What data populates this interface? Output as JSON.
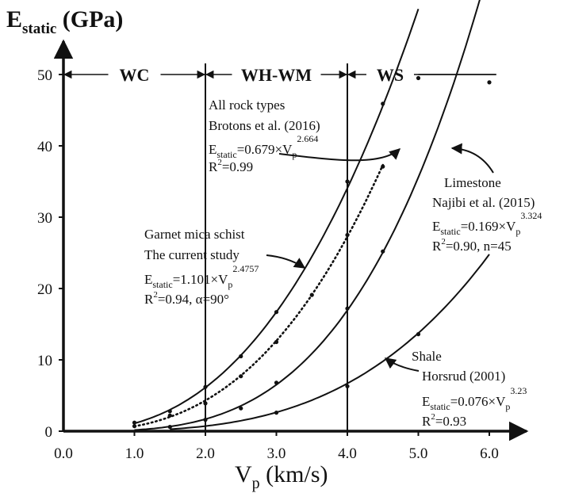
{
  "chart_data": {
    "type": "line",
    "y_axis_title": {
      "main": "E",
      "sub": "static",
      "rest": " (GPa)"
    },
    "x_axis_title": {
      "main": "V",
      "sub": "p",
      "rest": " (km/s)"
    },
    "xlim": [
      0,
      6.4
    ],
    "ylim": [
      0,
      52
    ],
    "x_ticks": [
      "0.0",
      "1.0",
      "2.0",
      "3.0",
      "4.0",
      "5.0",
      "6.0"
    ],
    "y_ticks": [
      "0",
      "10",
      "20",
      "30",
      "40",
      "50"
    ],
    "zones": [
      {
        "label": "WC",
        "x_range": [
          0,
          2
        ]
      },
      {
        "label": "WH-WM",
        "x_range": [
          2,
          4
        ]
      },
      {
        "label": "WS",
        "x_range": [
          4,
          6.1
        ]
      }
    ],
    "series": [
      {
        "key": "all",
        "style": "dotted",
        "coef": 0.679,
        "exp": 2.664,
        "x_range": [
          1.0,
          4.5
        ],
        "points": [
          [
            1.0,
            1.2
          ],
          [
            1.5,
            2.8
          ],
          [
            2.0,
            6.2
          ],
          [
            2.5,
            10.5
          ],
          [
            3.0,
            16.7
          ],
          [
            4.0,
            35.0
          ],
          [
            4.5,
            45.9
          ]
        ],
        "label_lines": [
          "All rock types",
          "Brotons et al. (2016)"
        ],
        "eq": {
          "lhs": "E",
          "sub": "static",
          "mid": "=0.679×V",
          "sub2": "p",
          "sup": "2.664"
        },
        "stat": {
          "r": "R",
          "sup": "2",
          "rest": "=0.99"
        }
      },
      {
        "key": "garnet",
        "style": "solid",
        "coef": 1.101,
        "exp": 2.4757,
        "x_range": [
          1.0,
          5.0
        ],
        "points": [
          [
            1.0,
            0.7
          ],
          [
            1.5,
            2.2
          ],
          [
            2.0,
            3.9
          ],
          [
            2.5,
            7.7
          ],
          [
            3.0,
            12.5
          ],
          [
            3.5,
            19.1
          ],
          [
            4.0,
            27.5
          ],
          [
            4.5,
            37.1
          ],
          [
            5.0,
            49.5
          ]
        ],
        "label_lines": [
          "Garnet mica schist",
          "The current study"
        ],
        "eq": {
          "lhs": "E",
          "sub": "static",
          "mid": "=1.101×V",
          "sub2": "p",
          "sup": "2.4757"
        },
        "stat": {
          "r": "R",
          "sup": "2",
          "rest": "=0.94, α=90°"
        }
      },
      {
        "key": "limestone",
        "style": "solid",
        "coef": 0.169,
        "exp": 3.324,
        "x_range": [
          1.0,
          6.0
        ],
        "points": [
          [
            1.5,
            0.6
          ],
          [
            2.0,
            1.6
          ],
          [
            2.5,
            3.2
          ],
          [
            3.0,
            6.8
          ],
          [
            4.0,
            17.2
          ],
          [
            4.5,
            25.2
          ],
          [
            6.0,
            48.9
          ]
        ],
        "label_lines": [
          "Limestone",
          "Najibi et al. (2015)"
        ],
        "eq": {
          "lhs": "E",
          "sub": "static",
          "mid": "=0.169×V",
          "sub2": "p",
          "sup": "3.324"
        },
        "stat": {
          "r": "R",
          "sup": "2",
          "rest": "=0.90, n=45"
        }
      },
      {
        "key": "shale",
        "style": "solid",
        "coef": 0.076,
        "exp": 3.23,
        "x_range": [
          1.5,
          6.0
        ],
        "points": [
          [
            3.0,
            2.6
          ],
          [
            4.0,
            6.3
          ],
          [
            5.0,
            13.6
          ]
        ],
        "label_lines": [
          "Shale",
          "Horsrud (2001)"
        ],
        "eq": {
          "lhs": "E",
          "sub": "static",
          "mid": "=0.076×V",
          "sub2": "p",
          "sup": "3.23"
        },
        "stat": {
          "r": "R",
          "sup": "2",
          "rest": "=0.93"
        }
      }
    ]
  }
}
